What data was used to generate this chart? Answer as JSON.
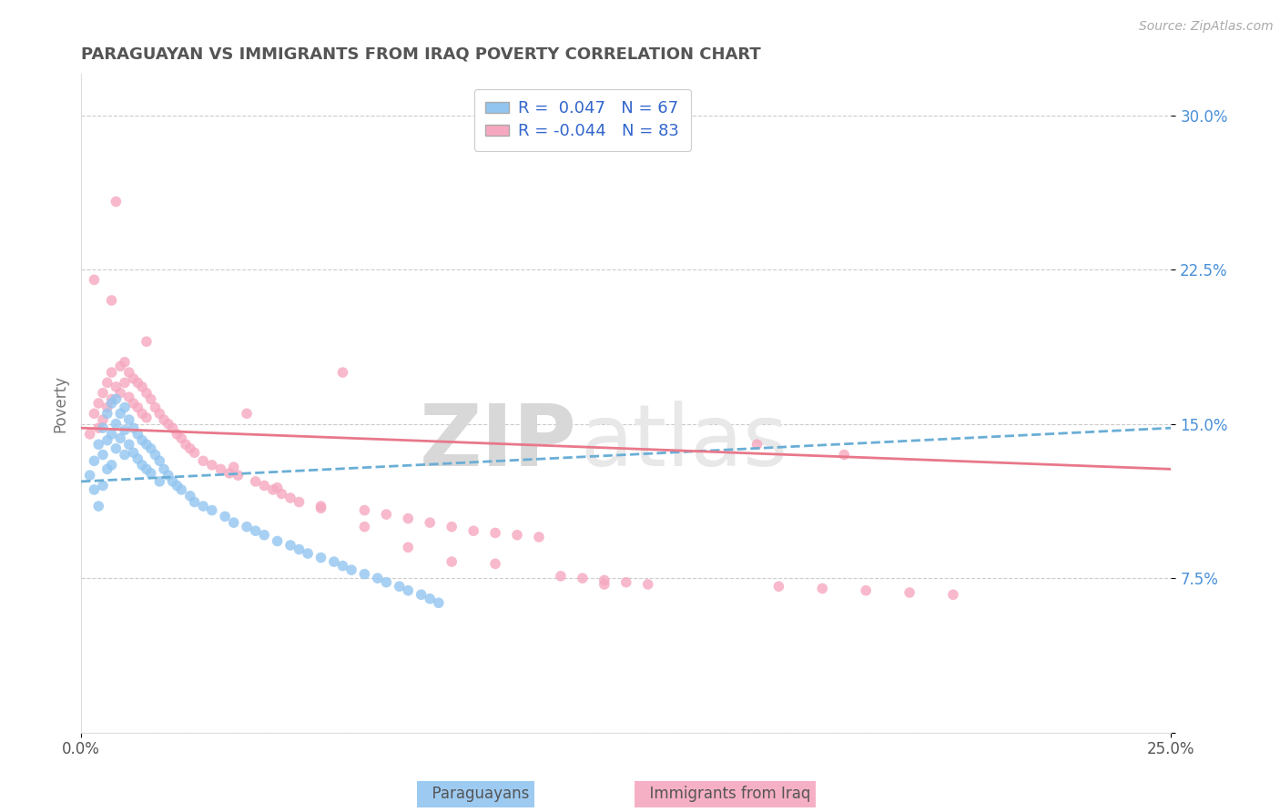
{
  "title": "PARAGUAYAN VS IMMIGRANTS FROM IRAQ POVERTY CORRELATION CHART",
  "source": "Source: ZipAtlas.com",
  "ylabel": "Poverty",
  "xmin": 0.0,
  "xmax": 0.25,
  "ymin": 0.0,
  "ymax": 0.32,
  "yticks": [
    0.0,
    0.075,
    0.15,
    0.225,
    0.3
  ],
  "ytick_labels": [
    "",
    "7.5%",
    "15.0%",
    "22.5%",
    "30.0%"
  ],
  "color_blue": "#92c5f0",
  "color_pink": "#f5a8bf",
  "color_blue_line": "#6aaed6",
  "color_pink_line": "#e8788a",
  "watermark_zip": "ZIP",
  "watermark_atlas": "atlas",
  "legend_label1": "R =  0.047   N = 67",
  "legend_label2": "R = -0.044   N = 83",
  "bottom_label1": "Paraguayans",
  "bottom_label2": "Immigrants from Iraq",
  "par_x": [
    0.002,
    0.003,
    0.003,
    0.004,
    0.004,
    0.005,
    0.005,
    0.005,
    0.006,
    0.006,
    0.006,
    0.007,
    0.007,
    0.007,
    0.008,
    0.008,
    0.008,
    0.009,
    0.009,
    0.01,
    0.01,
    0.01,
    0.011,
    0.011,
    0.012,
    0.012,
    0.013,
    0.013,
    0.014,
    0.014,
    0.015,
    0.015,
    0.016,
    0.016,
    0.017,
    0.018,
    0.018,
    0.019,
    0.02,
    0.021,
    0.022,
    0.023,
    0.025,
    0.026,
    0.028,
    0.03,
    0.033,
    0.035,
    0.038,
    0.04,
    0.042,
    0.045,
    0.048,
    0.05,
    0.052,
    0.055,
    0.058,
    0.06,
    0.062,
    0.065,
    0.068,
    0.07,
    0.073,
    0.075,
    0.078,
    0.08,
    0.082
  ],
  "par_y": [
    0.125,
    0.132,
    0.118,
    0.14,
    0.11,
    0.148,
    0.135,
    0.12,
    0.155,
    0.142,
    0.128,
    0.16,
    0.145,
    0.13,
    0.162,
    0.15,
    0.138,
    0.155,
    0.143,
    0.158,
    0.147,
    0.135,
    0.152,
    0.14,
    0.148,
    0.136,
    0.145,
    0.133,
    0.142,
    0.13,
    0.14,
    0.128,
    0.138,
    0.126,
    0.135,
    0.132,
    0.122,
    0.128,
    0.125,
    0.122,
    0.12,
    0.118,
    0.115,
    0.112,
    0.11,
    0.108,
    0.105,
    0.102,
    0.1,
    0.098,
    0.096,
    0.093,
    0.091,
    0.089,
    0.087,
    0.085,
    0.083,
    0.081,
    0.079,
    0.077,
    0.075,
    0.073,
    0.071,
    0.069,
    0.067,
    0.065,
    0.063
  ],
  "iraq_x": [
    0.002,
    0.003,
    0.004,
    0.004,
    0.005,
    0.005,
    0.006,
    0.006,
    0.007,
    0.007,
    0.008,
    0.008,
    0.009,
    0.009,
    0.01,
    0.01,
    0.011,
    0.011,
    0.012,
    0.012,
    0.013,
    0.013,
    0.014,
    0.014,
    0.015,
    0.015,
    0.016,
    0.017,
    0.018,
    0.019,
    0.02,
    0.021,
    0.022,
    0.023,
    0.024,
    0.025,
    0.026,
    0.028,
    0.03,
    0.032,
    0.034,
    0.036,
    0.038,
    0.04,
    0.042,
    0.044,
    0.046,
    0.048,
    0.05,
    0.055,
    0.06,
    0.065,
    0.07,
    0.075,
    0.08,
    0.085,
    0.09,
    0.095,
    0.1,
    0.105,
    0.11,
    0.115,
    0.12,
    0.125,
    0.13,
    0.16,
    0.17,
    0.18,
    0.19,
    0.2,
    0.035,
    0.045,
    0.055,
    0.065,
    0.075,
    0.085,
    0.095,
    0.12,
    0.155,
    0.175,
    0.003,
    0.007,
    0.015
  ],
  "iraq_y": [
    0.145,
    0.155,
    0.16,
    0.148,
    0.165,
    0.152,
    0.17,
    0.158,
    0.175,
    0.162,
    0.258,
    0.168,
    0.178,
    0.165,
    0.18,
    0.17,
    0.175,
    0.163,
    0.172,
    0.16,
    0.17,
    0.158,
    0.168,
    0.155,
    0.165,
    0.153,
    0.162,
    0.158,
    0.155,
    0.152,
    0.15,
    0.148,
    0.145,
    0.143,
    0.14,
    0.138,
    0.136,
    0.132,
    0.13,
    0.128,
    0.126,
    0.125,
    0.155,
    0.122,
    0.12,
    0.118,
    0.116,
    0.114,
    0.112,
    0.11,
    0.175,
    0.108,
    0.106,
    0.104,
    0.102,
    0.1,
    0.098,
    0.097,
    0.096,
    0.095,
    0.076,
    0.075,
    0.074,
    0.073,
    0.072,
    0.071,
    0.07,
    0.069,
    0.068,
    0.067,
    0.129,
    0.119,
    0.109,
    0.1,
    0.09,
    0.083,
    0.082,
    0.072,
    0.14,
    0.135,
    0.22,
    0.21,
    0.19
  ]
}
